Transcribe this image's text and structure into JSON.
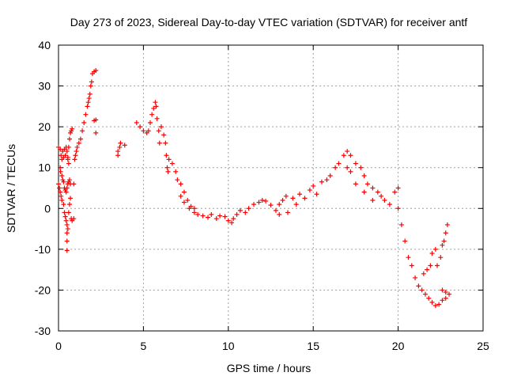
{
  "chart_data": {
    "type": "scatter",
    "title": "Day 273 of 2023, Sidereal Day-to-day VTEC variation (SDTVAR) for receiver antf",
    "xlabel": "GPS time / hours",
    "ylabel": "SDTVAR / TECUs",
    "xlim": [
      0,
      25
    ],
    "ylim": [
      -30,
      40
    ],
    "xticks": [
      0,
      5,
      10,
      15,
      20,
      25
    ],
    "yticks": [
      -30,
      -20,
      -10,
      0,
      10,
      20,
      30,
      40
    ],
    "grid": true,
    "marker": "+",
    "color": "#ff0000",
    "series": [
      {
        "name": "SDTVAR",
        "points": [
          [
            0.0,
            15
          ],
          [
            0.1,
            14.5
          ],
          [
            0.15,
            13
          ],
          [
            0.2,
            12
          ],
          [
            0.25,
            14
          ],
          [
            0.3,
            12.5
          ],
          [
            0.35,
            14.5
          ],
          [
            0.4,
            13
          ],
          [
            0.45,
            15
          ],
          [
            0.5,
            14
          ],
          [
            0.55,
            12
          ],
          [
            0.6,
            15
          ],
          [
            0.65,
            17
          ],
          [
            0.7,
            18.5
          ],
          [
            0.75,
            19
          ],
          [
            0.8,
            19.5
          ],
          [
            0.1,
            10
          ],
          [
            0.12,
            9
          ],
          [
            0.2,
            8
          ],
          [
            0.25,
            7
          ],
          [
            0.3,
            6.5
          ],
          [
            0.35,
            5
          ],
          [
            0.4,
            4.5
          ],
          [
            0.45,
            4
          ],
          [
            0.5,
            5
          ],
          [
            0.55,
            6
          ],
          [
            0.6,
            6.5
          ],
          [
            0.65,
            7
          ],
          [
            0.7,
            6
          ],
          [
            0.0,
            6
          ],
          [
            0.05,
            5
          ],
          [
            0.1,
            4
          ],
          [
            0.15,
            3
          ],
          [
            0.2,
            2
          ],
          [
            0.3,
            1
          ],
          [
            0.35,
            -1
          ],
          [
            0.4,
            -2
          ],
          [
            0.45,
            -3
          ],
          [
            0.5,
            -4
          ],
          [
            0.5,
            -6
          ],
          [
            0.5,
            -8
          ],
          [
            0.5,
            -10.3
          ],
          [
            0.55,
            -5
          ],
          [
            0.6,
            -1
          ],
          [
            0.65,
            1
          ],
          [
            0.7,
            2.5
          ],
          [
            0.75,
            -2.5
          ],
          [
            0.8,
            -3
          ],
          [
            0.9,
            -2.5
          ],
          [
            0.55,
            12.5
          ],
          [
            0.6,
            11
          ],
          [
            0.9,
            6
          ],
          [
            0.95,
            12
          ],
          [
            1.0,
            13
          ],
          [
            1.05,
            14
          ],
          [
            1.1,
            15
          ],
          [
            1.2,
            16
          ],
          [
            1.3,
            17
          ],
          [
            1.4,
            19
          ],
          [
            1.5,
            21
          ],
          [
            1.6,
            23
          ],
          [
            1.7,
            25
          ],
          [
            1.75,
            26
          ],
          [
            1.8,
            27
          ],
          [
            1.85,
            28
          ],
          [
            1.9,
            30
          ],
          [
            1.95,
            31
          ],
          [
            2.0,
            33
          ],
          [
            2.1,
            33.5
          ],
          [
            2.2,
            33.8
          ],
          [
            2.1,
            21.5
          ],
          [
            2.2,
            21.7
          ],
          [
            2.2,
            18.5
          ],
          [
            3.5,
            14
          ],
          [
            3.6,
            15
          ],
          [
            3.65,
            16
          ],
          [
            3.5,
            13
          ],
          [
            3.9,
            15.5
          ],
          [
            4.6,
            21
          ],
          [
            4.8,
            20
          ],
          [
            5.0,
            19
          ],
          [
            5.2,
            18.5
          ],
          [
            5.3,
            19
          ],
          [
            5.4,
            21
          ],
          [
            5.5,
            23
          ],
          [
            5.6,
            24.5
          ],
          [
            5.7,
            26
          ],
          [
            5.75,
            25
          ],
          [
            5.8,
            22
          ],
          [
            5.9,
            19
          ],
          [
            5.95,
            16
          ],
          [
            6.05,
            20
          ],
          [
            6.2,
            18
          ],
          [
            6.3,
            16
          ],
          [
            6.35,
            13
          ],
          [
            6.4,
            10
          ],
          [
            6.45,
            9
          ],
          [
            6.5,
            12
          ],
          [
            6.7,
            11
          ],
          [
            6.9,
            9
          ],
          [
            7.0,
            7
          ],
          [
            7.2,
            6
          ],
          [
            7.2,
            3
          ],
          [
            7.4,
            4
          ],
          [
            7.4,
            1.5
          ],
          [
            7.6,
            2
          ],
          [
            7.7,
            0
          ],
          [
            7.8,
            0.5
          ],
          [
            8.0,
            -1
          ],
          [
            8.0,
            0
          ],
          [
            8.2,
            -1.5
          ],
          [
            8.5,
            -1.8
          ],
          [
            8.8,
            -2.2
          ],
          [
            9.0,
            -1.5
          ],
          [
            9.3,
            -2.5
          ],
          [
            9.5,
            -1.8
          ],
          [
            9.8,
            -2
          ],
          [
            10.0,
            -3
          ],
          [
            10.2,
            -3.5
          ],
          [
            10.3,
            -2.5
          ],
          [
            10.5,
            -1.5
          ],
          [
            10.7,
            -0.5
          ],
          [
            11.0,
            -1
          ],
          [
            11.2,
            0
          ],
          [
            11.5,
            1
          ],
          [
            11.8,
            1.5
          ],
          [
            12.0,
            2
          ],
          [
            12.2,
            1.8
          ],
          [
            12.5,
            0.8
          ],
          [
            12.8,
            -0.5
          ],
          [
            13.0,
            1
          ],
          [
            13.2,
            2
          ],
          [
            13.4,
            3
          ],
          [
            13.0,
            -1.5
          ],
          [
            13.5,
            -1
          ],
          [
            13.8,
            2.5
          ],
          [
            14.0,
            1
          ],
          [
            14.2,
            3.5
          ],
          [
            14.5,
            2.5
          ],
          [
            14.8,
            4.5
          ],
          [
            15.0,
            5.5
          ],
          [
            15.2,
            3.5
          ],
          [
            15.5,
            6.5
          ],
          [
            15.8,
            7
          ],
          [
            16.0,
            8
          ],
          [
            16.3,
            10
          ],
          [
            16.5,
            11
          ],
          [
            16.8,
            13
          ],
          [
            17.0,
            14
          ],
          [
            17.2,
            13
          ],
          [
            17.0,
            10
          ],
          [
            17.2,
            9
          ],
          [
            17.5,
            11
          ],
          [
            17.8,
            10
          ],
          [
            18.0,
            8
          ],
          [
            18.2,
            6
          ],
          [
            18.5,
            5
          ],
          [
            18.8,
            4
          ],
          [
            19.0,
            3
          ],
          [
            19.2,
            2
          ],
          [
            19.5,
            1
          ],
          [
            17.5,
            6
          ],
          [
            18.0,
            4
          ],
          [
            18.5,
            2
          ],
          [
            19.8,
            4
          ],
          [
            20.0,
            5
          ],
          [
            20.0,
            0
          ],
          [
            20.2,
            -4
          ],
          [
            20.4,
            -8
          ],
          [
            20.6,
            -12
          ],
          [
            20.8,
            -14
          ],
          [
            21.0,
            -17
          ],
          [
            21.2,
            -19
          ],
          [
            21.4,
            -20
          ],
          [
            21.6,
            -21
          ],
          [
            21.8,
            -22
          ],
          [
            22.0,
            -23
          ],
          [
            22.2,
            -23.8
          ],
          [
            22.4,
            -23.5
          ],
          [
            22.6,
            -22.5
          ],
          [
            22.8,
            -22
          ],
          [
            21.5,
            -16
          ],
          [
            21.7,
            -15
          ],
          [
            21.9,
            -14
          ],
          [
            22.0,
            -11
          ],
          [
            22.2,
            -10
          ],
          [
            22.3,
            -14
          ],
          [
            22.5,
            -12
          ],
          [
            22.6,
            -9
          ],
          [
            22.7,
            -8
          ],
          [
            22.8,
            -6
          ],
          [
            22.9,
            -4
          ],
          [
            22.6,
            -20
          ],
          [
            22.8,
            -20.5
          ],
          [
            23.0,
            -21
          ]
        ]
      }
    ]
  }
}
